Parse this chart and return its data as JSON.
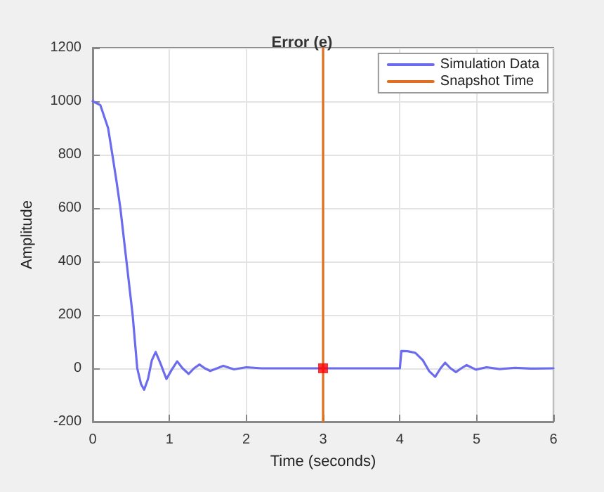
{
  "chart_data": {
    "type": "line",
    "title": "Error (e)",
    "xlabel": "Time (seconds)",
    "ylabel": "Amplitude",
    "xlim": [
      0,
      6
    ],
    "xticks": [
      0,
      1,
      2,
      3,
      4,
      5,
      6
    ],
    "ylim": [
      -200,
      1200
    ],
    "yticks": [
      -200,
      0,
      200,
      400,
      600,
      800,
      1000,
      1200
    ],
    "grid": true,
    "legend": "top right",
    "marker": "none",
    "line_style": "solid",
    "series": [
      {
        "name": "Simulation Data",
        "color": "#6b6bef",
        "x": [
          0,
          0.1,
          0.2,
          0.256,
          0.31,
          0.36,
          0.44,
          0.52,
          0.58,
          0.63,
          0.67,
          0.72,
          0.77,
          0.82,
          0.88,
          0.96,
          1.03,
          1.1,
          1.17,
          1.25,
          1.32,
          1.39,
          1.46,
          1.53,
          1.62,
          1.7,
          1.84,
          2.0,
          2.2,
          3.0,
          4.0,
          4.02,
          4.1,
          4.2,
          4.3,
          4.38,
          4.46,
          4.53,
          4.59,
          4.66,
          4.73,
          4.8,
          4.87,
          4.99,
          5.13,
          5.3,
          5.5,
          5.7,
          6.0
        ],
        "values": [
          1000,
          985,
          900,
          800,
          700,
          600,
          400,
          200,
          0,
          -60,
          -80,
          -40,
          30,
          61,
          20,
          -40,
          -5,
          26,
          0,
          -21,
          0,
          14,
          0,
          -10,
          0,
          9,
          -4,
          4,
          0,
          0,
          0,
          65,
          64,
          58,
          30,
          -10,
          -32,
          0,
          21,
          0,
          -14,
          0,
          12,
          -5,
          4,
          -3,
          2,
          -1,
          0
        ]
      },
      {
        "name": "Snapshot Time",
        "color": "#e07020",
        "x": [
          3,
          3
        ],
        "values": [
          -200,
          1200
        ]
      },
      {
        "type": "scatter",
        "color": "#ff0000",
        "marker": "square",
        "x": [
          3
        ],
        "values": [
          0
        ]
      }
    ]
  }
}
